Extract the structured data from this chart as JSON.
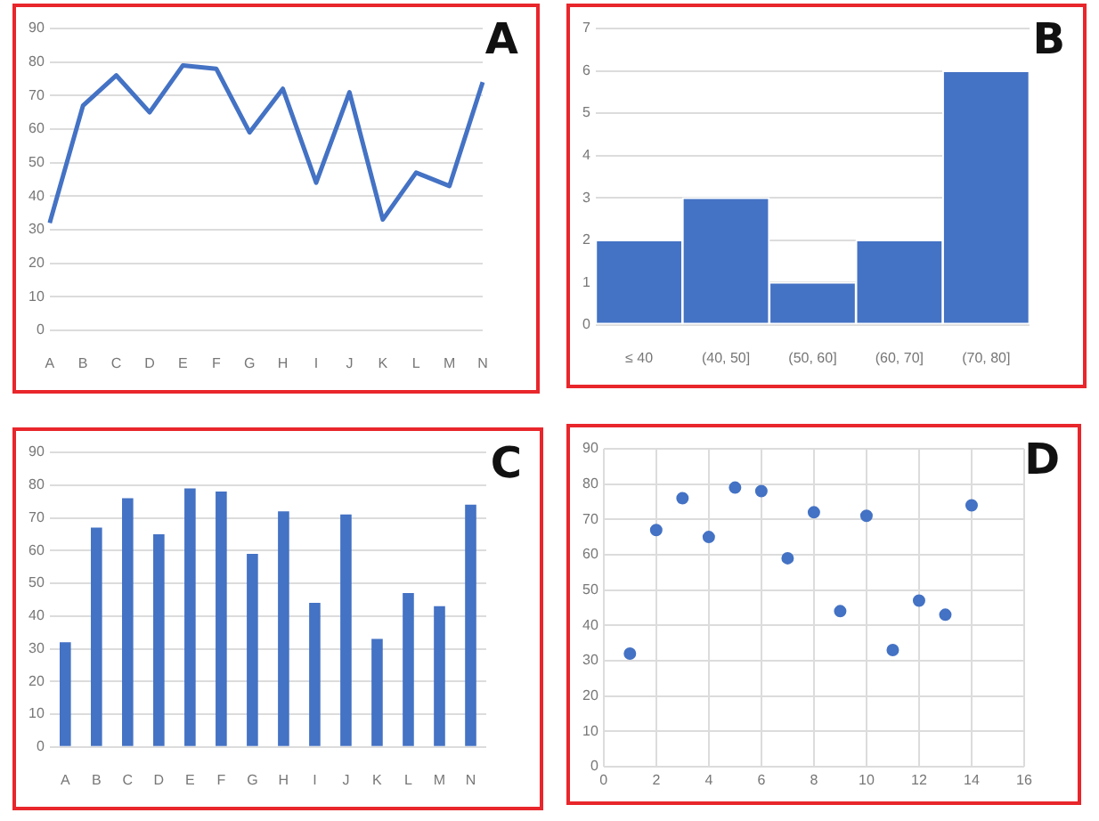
{
  "chart_data": [
    {
      "type": "line",
      "title": "A",
      "categories": [
        "A",
        "B",
        "C",
        "D",
        "E",
        "F",
        "G",
        "H",
        "I",
        "J",
        "K",
        "L",
        "M",
        "N"
      ],
      "values": [
        32,
        67,
        76,
        65,
        79,
        78,
        59,
        72,
        44,
        71,
        33,
        47,
        43,
        74
      ],
      "color": "#4472c4",
      "ylim": [
        0,
        90
      ],
      "yticks": [
        0,
        10,
        20,
        30,
        40,
        50,
        60,
        70,
        80,
        90
      ],
      "grid": "y",
      "marker": "none",
      "legend": false
    },
    {
      "type": "histogram",
      "title": "B",
      "categories": [
        "≤ 40",
        "(40, 50]",
        "(50, 60]",
        "(60, 70]",
        "(70, 80]"
      ],
      "values": [
        2,
        3,
        1,
        2,
        6
      ],
      "color": "#4472c4",
      "ylim": [
        0,
        7
      ],
      "yticks": [
        0,
        1,
        2,
        3,
        4,
        5,
        6,
        7
      ],
      "grid": "y",
      "legend": false
    },
    {
      "type": "bar",
      "title": "C",
      "categories": [
        "A",
        "B",
        "C",
        "D",
        "E",
        "F",
        "G",
        "H",
        "I",
        "J",
        "K",
        "L",
        "M",
        "N"
      ],
      "values": [
        32,
        67,
        76,
        65,
        79,
        78,
        59,
        72,
        44,
        71,
        33,
        47,
        43,
        74
      ],
      "color": "#4472c4",
      "ylim": [
        0,
        90
      ],
      "yticks": [
        0,
        10,
        20,
        30,
        40,
        50,
        60,
        70,
        80,
        90
      ],
      "grid": "y",
      "legend": false
    },
    {
      "type": "scatter",
      "title": "D",
      "x": [
        1,
        2,
        3,
        4,
        5,
        6,
        7,
        8,
        9,
        10,
        11,
        12,
        13,
        14
      ],
      "values": [
        32,
        67,
        76,
        65,
        79,
        78,
        59,
        72,
        44,
        71,
        33,
        47,
        43,
        74
      ],
      "color": "#4472c4",
      "xlim": [
        0,
        16
      ],
      "xticks": [
        0,
        2,
        4,
        6,
        8,
        10,
        12,
        14,
        16
      ],
      "ylim": [
        0,
        90
      ],
      "yticks": [
        0,
        10,
        20,
        30,
        40,
        50,
        60,
        70,
        80,
        90
      ],
      "grid": true,
      "marker": "circle",
      "legend": false
    }
  ]
}
